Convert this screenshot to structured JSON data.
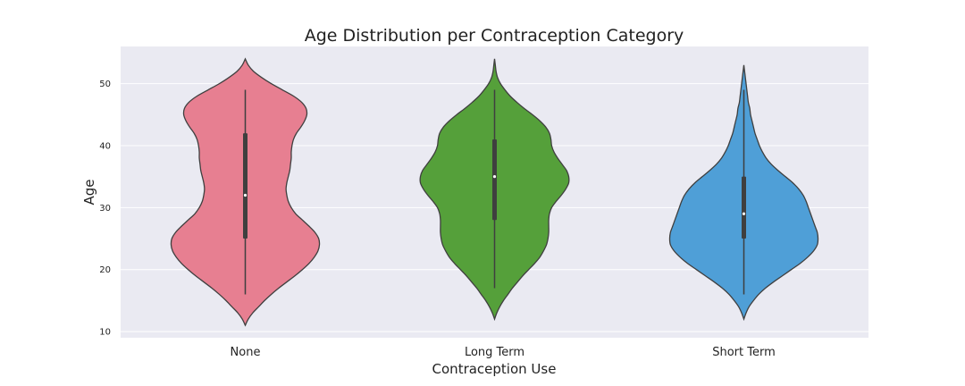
{
  "chart_data": {
    "type": "violin",
    "title": "Age Distribution per Contraception Category",
    "xlabel": "Contraception Use",
    "ylabel": "Age",
    "ylim": [
      9,
      56
    ],
    "yticks": [
      10,
      20,
      30,
      40,
      50
    ],
    "grid": true,
    "background": "#eaeaf2",
    "categories": [
      "None",
      "Long Term",
      "Short Term"
    ],
    "colors": [
      "#e77f91",
      "#55a03a",
      "#4f9fd7"
    ],
    "series": [
      {
        "category": "None",
        "min": 16,
        "q1": 25,
        "median": 32,
        "q3": 42,
        "max": 49,
        "kde_extent": [
          11,
          54
        ],
        "density": [
          [
            11,
            0.0
          ],
          [
            12,
            0.04
          ],
          [
            13,
            0.1
          ],
          [
            14,
            0.18
          ],
          [
            15,
            0.26
          ],
          [
            16,
            0.35
          ],
          [
            17,
            0.45
          ],
          [
            18,
            0.56
          ],
          [
            19,
            0.67
          ],
          [
            20,
            0.77
          ],
          [
            21,
            0.86
          ],
          [
            22,
            0.93
          ],
          [
            23,
            0.98
          ],
          [
            24,
            1.0
          ],
          [
            25,
            0.99
          ],
          [
            26,
            0.94
          ],
          [
            27,
            0.86
          ],
          [
            28,
            0.77
          ],
          [
            29,
            0.68
          ],
          [
            30,
            0.62
          ],
          [
            31,
            0.58
          ],
          [
            32,
            0.56
          ],
          [
            33,
            0.55
          ],
          [
            34,
            0.56
          ],
          [
            35,
            0.58
          ],
          [
            36,
            0.6
          ],
          [
            37,
            0.61
          ],
          [
            38,
            0.62
          ],
          [
            39,
            0.62
          ],
          [
            40,
            0.63
          ],
          [
            41,
            0.65
          ],
          [
            42,
            0.69
          ],
          [
            43,
            0.75
          ],
          [
            44,
            0.8
          ],
          [
            45,
            0.83
          ],
          [
            46,
            0.82
          ],
          [
            47,
            0.76
          ],
          [
            48,
            0.65
          ],
          [
            49,
            0.5
          ],
          [
            50,
            0.35
          ],
          [
            51,
            0.22
          ],
          [
            52,
            0.11
          ],
          [
            53,
            0.04
          ],
          [
            54,
            0.0
          ]
        ]
      },
      {
        "category": "Long Term",
        "min": 17,
        "q1": 28,
        "median": 35,
        "q3": 41,
        "max": 49,
        "kde_extent": [
          12,
          54
        ],
        "density": [
          [
            12,
            0.0
          ],
          [
            13,
            0.03
          ],
          [
            14,
            0.07
          ],
          [
            15,
            0.12
          ],
          [
            16,
            0.18
          ],
          [
            17,
            0.24
          ],
          [
            18,
            0.31
          ],
          [
            19,
            0.38
          ],
          [
            20,
            0.46
          ],
          [
            21,
            0.54
          ],
          [
            22,
            0.61
          ],
          [
            23,
            0.66
          ],
          [
            24,
            0.7
          ],
          [
            25,
            0.72
          ],
          [
            26,
            0.73
          ],
          [
            27,
            0.73
          ],
          [
            28,
            0.73
          ],
          [
            29,
            0.74
          ],
          [
            30,
            0.77
          ],
          [
            31,
            0.83
          ],
          [
            32,
            0.9
          ],
          [
            33,
            0.96
          ],
          [
            34,
            1.0
          ],
          [
            35,
            1.0
          ],
          [
            36,
            0.97
          ],
          [
            37,
            0.91
          ],
          [
            38,
            0.85
          ],
          [
            39,
            0.8
          ],
          [
            40,
            0.77
          ],
          [
            41,
            0.76
          ],
          [
            42,
            0.74
          ],
          [
            43,
            0.69
          ],
          [
            44,
            0.61
          ],
          [
            45,
            0.51
          ],
          [
            46,
            0.4
          ],
          [
            47,
            0.3
          ],
          [
            48,
            0.21
          ],
          [
            49,
            0.14
          ],
          [
            50,
            0.08
          ],
          [
            51,
            0.04
          ],
          [
            52,
            0.02
          ],
          [
            53,
            0.01
          ],
          [
            54,
            0.0
          ]
        ]
      },
      {
        "category": "Short Term",
        "min": 16,
        "q1": 25,
        "median": 29,
        "q3": 35,
        "max": 49,
        "kde_extent": [
          12,
          53
        ],
        "density": [
          [
            12,
            0.0
          ],
          [
            13,
            0.03
          ],
          [
            14,
            0.07
          ],
          [
            15,
            0.13
          ],
          [
            16,
            0.2
          ],
          [
            17,
            0.29
          ],
          [
            18,
            0.4
          ],
          [
            19,
            0.52
          ],
          [
            20,
            0.64
          ],
          [
            21,
            0.76
          ],
          [
            22,
            0.86
          ],
          [
            23,
            0.94
          ],
          [
            24,
            0.99
          ],
          [
            25,
            1.0
          ],
          [
            26,
            0.99
          ],
          [
            27,
            0.96
          ],
          [
            28,
            0.93
          ],
          [
            29,
            0.9
          ],
          [
            30,
            0.87
          ],
          [
            31,
            0.84
          ],
          [
            32,
            0.8
          ],
          [
            33,
            0.74
          ],
          [
            34,
            0.66
          ],
          [
            35,
            0.56
          ],
          [
            36,
            0.46
          ],
          [
            37,
            0.37
          ],
          [
            38,
            0.3
          ],
          [
            39,
            0.25
          ],
          [
            40,
            0.21
          ],
          [
            41,
            0.18
          ],
          [
            42,
            0.15
          ],
          [
            43,
            0.13
          ],
          [
            44,
            0.11
          ],
          [
            45,
            0.09
          ],
          [
            46,
            0.08
          ],
          [
            47,
            0.06
          ],
          [
            48,
            0.05
          ],
          [
            49,
            0.04
          ],
          [
            50,
            0.03
          ],
          [
            51,
            0.02
          ],
          [
            52,
            0.01
          ],
          [
            53,
            0.0
          ]
        ]
      }
    ]
  }
}
